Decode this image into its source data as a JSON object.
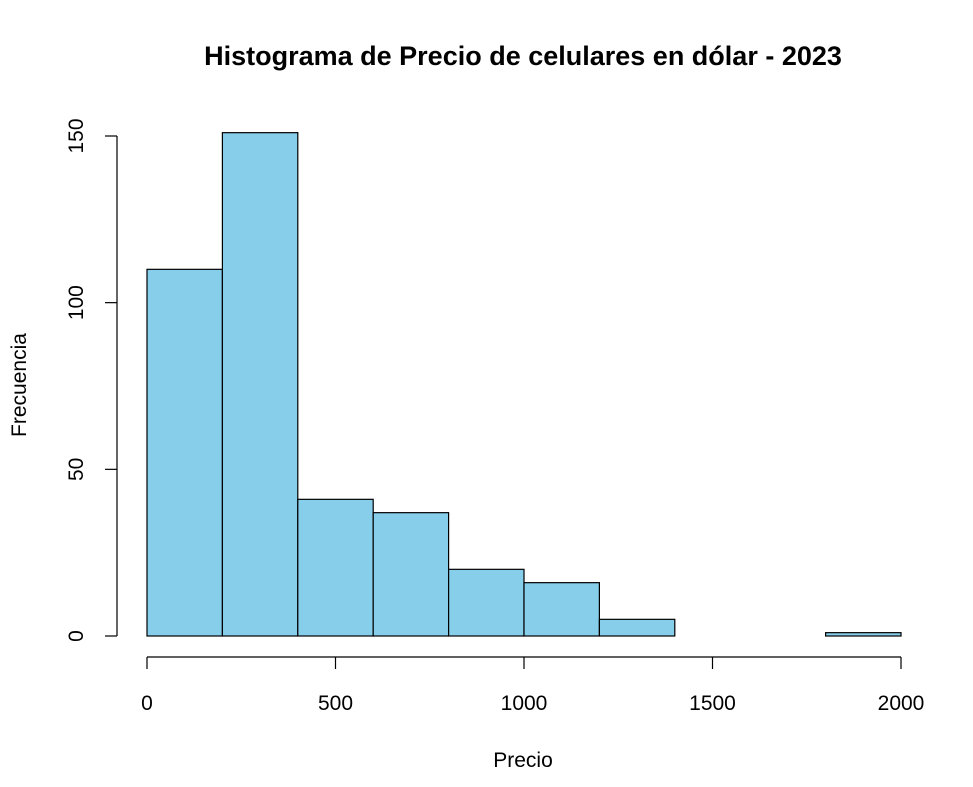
{
  "chart_data": {
    "type": "bar",
    "title": "Histograma de Precio de celulares en dólar - 2023",
    "xlabel": "Precio",
    "ylabel": "Frecuencia",
    "bar_color": "#87CEEB",
    "border_color": "#000000",
    "bins": [
      {
        "from": 0,
        "to": 200,
        "count": 110
      },
      {
        "from": 200,
        "to": 400,
        "count": 151
      },
      {
        "from": 400,
        "to": 600,
        "count": 41
      },
      {
        "from": 600,
        "to": 800,
        "count": 37
      },
      {
        "from": 800,
        "to": 1000,
        "count": 20
      },
      {
        "from": 1000,
        "to": 1200,
        "count": 16
      },
      {
        "from": 1200,
        "to": 1400,
        "count": 5
      },
      {
        "from": 1400,
        "to": 1600,
        "count": 0
      },
      {
        "from": 1600,
        "to": 1800,
        "count": 0
      },
      {
        "from": 1800,
        "to": 2000,
        "count": 1
      }
    ],
    "x_ticks": [
      0,
      500,
      1000,
      1500,
      2000
    ],
    "y_ticks": [
      0,
      50,
      100,
      150
    ],
    "xlim": [
      0,
      2000
    ],
    "ylim": [
      0,
      150
    ],
    "grid": false,
    "legend": "none"
  }
}
